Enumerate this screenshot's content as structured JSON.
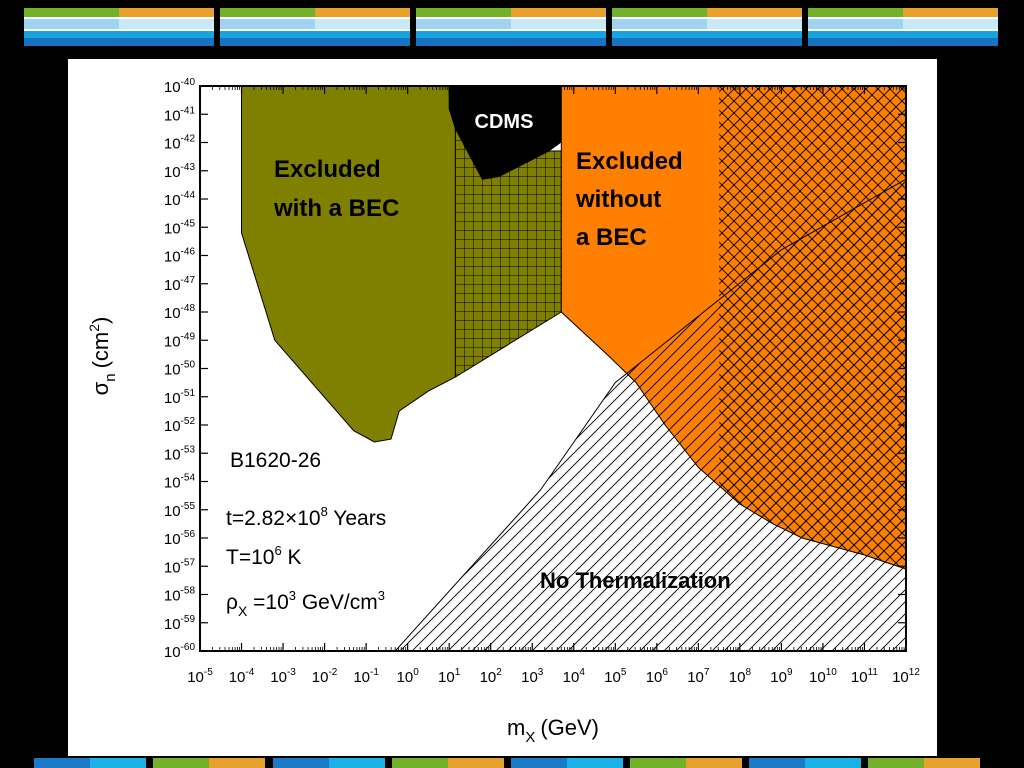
{
  "chart_data": {
    "type": "area",
    "title": "",
    "xlabel": "m",
    "xlabel_sub": "X",
    "xlabel_unit": "(GeV)",
    "ylabel": "σ",
    "ylabel_sub": "n",
    "ylabel_unit": "(cm",
    "ylabel_sup": "2",
    "ylabel_close": ")",
    "x_scale": "log",
    "y_scale": "log",
    "x_exponent_range": [
      -5,
      12
    ],
    "y_exponent_range": [
      -60,
      -40
    ],
    "tick_base": "10",
    "grid": false,
    "colors": {
      "excluded_with_bec": "#7f7f00",
      "excluded_without_bec": "#ff7f00",
      "cdms": "#000000",
      "hatch": "#000000",
      "frame": "#000000"
    },
    "regions": [
      {
        "name": "Excluded with a BEC",
        "label_lines": [
          "Excluded",
          "with a BEC"
        ],
        "fill": "olive",
        "points": [
          [
            -4,
            -40
          ],
          [
            1.15,
            -40
          ],
          [
            1.15,
            -50.3
          ],
          [
            0.5,
            -50.8
          ],
          [
            -0.2,
            -51.5
          ],
          [
            -0.4,
            -52.5
          ],
          [
            -0.8,
            -52.6
          ],
          [
            -1.3,
            -52.2
          ],
          [
            -3.2,
            -49
          ],
          [
            -4,
            -45.2
          ]
        ]
      },
      {
        "name": "Excluded with a BEC (crosshatched, CDMS overlap)",
        "fill": "olive-grid",
        "points": [
          [
            1.15,
            -41.5
          ],
          [
            1.8,
            -43.3
          ],
          [
            2.2,
            -43.2
          ],
          [
            3.4,
            -42.3
          ],
          [
            3.7,
            -42.3
          ],
          [
            3.7,
            -48
          ],
          [
            1.15,
            -50.3
          ]
        ]
      },
      {
        "name": "CDMS",
        "label_lines": [
          "CDMS"
        ],
        "fill": "black",
        "points": [
          [
            1,
            -40
          ],
          [
            4.15,
            -40
          ],
          [
            4.15,
            -41.5
          ],
          [
            3.4,
            -42.3
          ],
          [
            2.2,
            -43.2
          ],
          [
            1.8,
            -43.3
          ],
          [
            1.15,
            -41.5
          ],
          [
            1,
            -40.8
          ]
        ]
      },
      {
        "name": "Excluded without a BEC",
        "label_lines": [
          "Excluded",
          "without",
          "a BEC"
        ],
        "fill": "orange",
        "points": [
          [
            3.7,
            -40
          ],
          [
            12,
            -40
          ],
          [
            12,
            -57.1
          ],
          [
            11,
            -56.6
          ],
          [
            9.5,
            -56
          ],
          [
            8.8,
            -55.5
          ],
          [
            8,
            -54.8
          ],
          [
            7,
            -53.5
          ],
          [
            6.2,
            -52
          ],
          [
            5.5,
            -50.5
          ],
          [
            4.8,
            -49.5
          ],
          [
            3.7,
            -48
          ]
        ]
      },
      {
        "name": "Excluded without a BEC (crosshatched)",
        "fill": "orange-cross",
        "points": [
          [
            7.5,
            -40
          ],
          [
            12,
            -40
          ],
          [
            12,
            -57.1
          ],
          [
            11,
            -56.6
          ],
          [
            9.5,
            -56
          ],
          [
            8.8,
            -55.5
          ],
          [
            8,
            -54.8
          ],
          [
            7.5,
            -54.2
          ]
        ]
      },
      {
        "name": "No Thermalization",
        "label_lines": [
          "No Thermalization"
        ],
        "fill": "diagonal-hatch",
        "points": [
          [
            -0.3,
            -60
          ],
          [
            12,
            -60
          ],
          [
            12,
            -43.3
          ],
          [
            9,
            -45.8
          ],
          [
            5,
            -50.5
          ],
          [
            3.2,
            -54.3
          ]
        ]
      }
    ],
    "annotations": {
      "object": "B1620-26",
      "age_prefix": "t=2.82×10",
      "age_exp": "8",
      "age_suffix": " Years",
      "temp_prefix": "T=10",
      "temp_exp": "6",
      "temp_suffix": " K",
      "density_symbol": "ρ",
      "density_sub": "X",
      "density_prefix": " =10",
      "density_exp": "3",
      "density_suffix": " GeV/cm",
      "density_unit_exp": "3"
    }
  }
}
